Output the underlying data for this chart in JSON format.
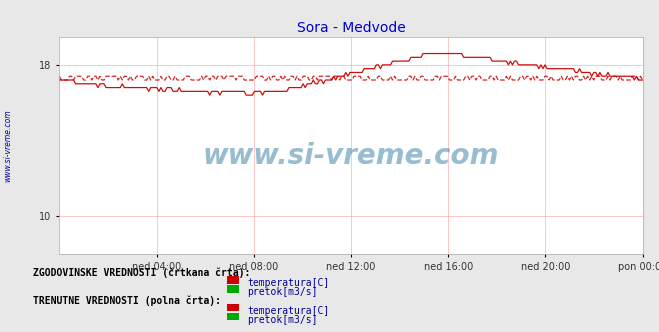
{
  "title": "Sora - Medvode",
  "title_color": "#0000cc",
  "bg_color": "#e8e8e8",
  "plot_bg_color": "#ffffff",
  "grid_color": "#ff9999",
  "watermark_text": "www.si-vreme.com",
  "watermark_color": "#4488aa",
  "ylim": [
    8,
    19.5
  ],
  "yticks": [
    10,
    18
  ],
  "x_labels": [
    "ned 04:00",
    "ned 08:00",
    "ned 12:00",
    "ned 16:00",
    "ned 20:00",
    "pon 00:00"
  ],
  "x_ticks_pos": [
    0.1667,
    0.3333,
    0.5,
    0.6667,
    0.8333,
    1.0
  ],
  "temp_color": "#cc0000",
  "pretok_color": "#00aa00",
  "legend_label_color": "#000099",
  "sidebar_text": "www.si-vreme.com",
  "sidebar_color": "#0000aa",
  "hist_section1": "ZGODOVINSKE VREDNOSTI (črtkana črta):",
  "curr_section2": "TRENUTNE VREDNOSTI (polna črta):",
  "leg1_label": "temperatura[C]",
  "leg2_label": "pretok[m3/s]"
}
